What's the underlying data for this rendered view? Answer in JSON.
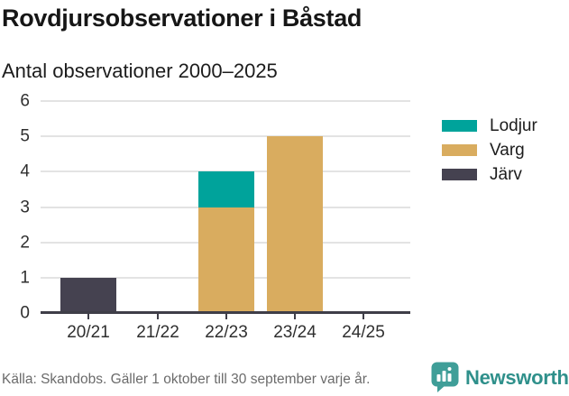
{
  "header": {
    "title": "Rovdjursobservationer i Båstad",
    "subtitle": "Antal observationer 2000–2025"
  },
  "chart_data": {
    "type": "bar",
    "stacked": true,
    "title": "Rovdjursobservationer i Båstad",
    "subtitle": "Antal observationer 2000–2025",
    "categories": [
      "20/21",
      "21/22",
      "22/23",
      "23/24",
      "24/25"
    ],
    "series": [
      {
        "name": "Lodjur",
        "color": "#00a39b",
        "values": [
          0,
          0,
          1,
          0,
          0
        ]
      },
      {
        "name": "Varg",
        "color": "#d9ac5f",
        "values": [
          0,
          0,
          3,
          5,
          0
        ]
      },
      {
        "name": "Järv",
        "color": "#454250",
        "values": [
          1,
          0,
          0,
          0,
          0
        ]
      }
    ],
    "stack_order_bottom_to_top": [
      "Järv",
      "Varg",
      "Lodjur"
    ],
    "xlabel": "",
    "ylabel": "",
    "ylim": [
      0,
      6
    ],
    "yticks": [
      0,
      1,
      2,
      3,
      4,
      5,
      6
    ],
    "grid": true,
    "legend_position": "right",
    "colors": {
      "grid": "#e3e3e3",
      "axis": "#3f3e48",
      "tick_label": "#2f2f2f"
    }
  },
  "footer": {
    "source": "Källa: Skandobs. Gäller 1 oktober till 30 september varje år.",
    "brand": "Newsworthy",
    "brand_color": "#2f908b",
    "logo_color": "#3f9e98"
  }
}
